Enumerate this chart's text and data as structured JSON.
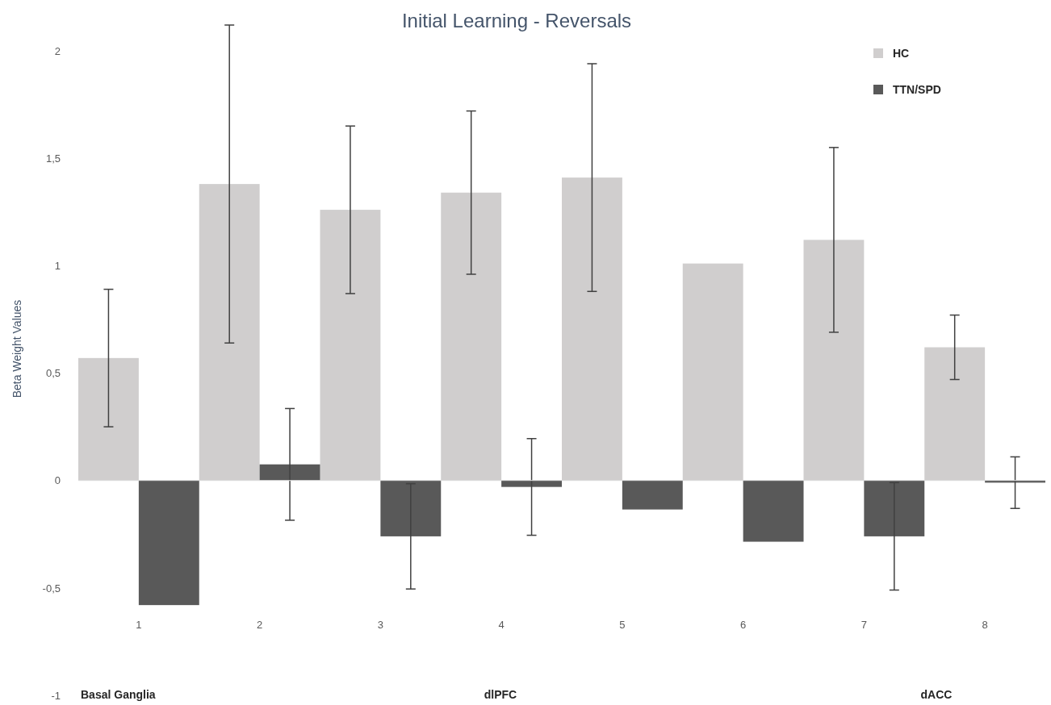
{
  "chart_data": {
    "type": "bar",
    "title": "Initial Learning - Reversals",
    "ylabel": "Beta Weight Values",
    "categories": [
      "1",
      "2",
      "3",
      "4",
      "5",
      "6",
      "7",
      "8"
    ],
    "series": [
      {
        "name": "HC",
        "color": "#d0cece",
        "values": [
          0.57,
          1.38,
          1.26,
          1.34,
          1.41,
          1.01,
          1.12,
          0.62
        ],
        "errors": [
          0.32,
          0.74,
          0.39,
          0.38,
          0.53,
          null,
          0.43,
          0.15
        ]
      },
      {
        "name": "TTN/SPD",
        "color": "#595959",
        "values": [
          -0.58,
          0.075,
          -0.26,
          -0.03,
          -0.135,
          -0.285,
          -0.26,
          -0.01
        ],
        "errors": [
          null,
          0.26,
          0.245,
          0.225,
          null,
          null,
          0.25,
          0.12
        ]
      }
    ],
    "ylim": [
      -1,
      2
    ],
    "yticks": [
      2,
      {
        "value": 1.5,
        "label": "1,5"
      },
      1,
      {
        "value": 0.5,
        "label": "0,5"
      },
      0,
      {
        "value": -0.5,
        "label": "-0,5"
      },
      -1
    ],
    "grid": false,
    "ref_lines": [
      {
        "axis": "y",
        "value": 0,
        "color": "#d9d9d9"
      }
    ],
    "legend": "top right",
    "annotations": [
      "Basal Ganglia",
      "dlPFC",
      "dACC"
    ]
  }
}
